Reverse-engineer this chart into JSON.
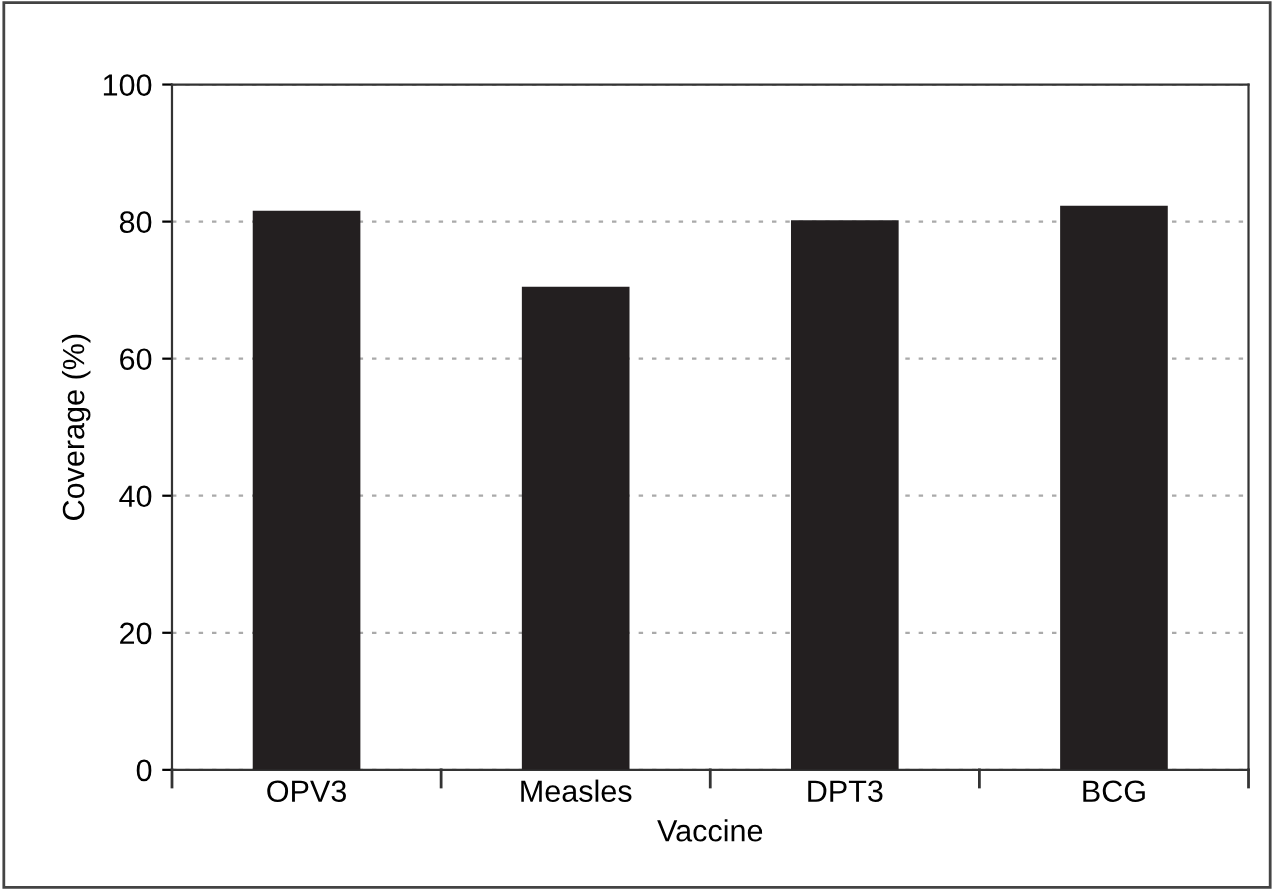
{
  "chart_data": {
    "type": "bar",
    "xlabel": "Vaccine",
    "ylabel": "Coverage (%)",
    "categories": [
      "OPV3",
      "Measles",
      "DPT3",
      "BCG"
    ],
    "values": [
      81.6,
      70.5,
      80.2,
      82.3
    ],
    "color": "#231f20",
    "ylim": [
      0,
      100
    ],
    "yticks": [
      0,
      20,
      40,
      60,
      80,
      100
    ],
    "grid": "y"
  }
}
